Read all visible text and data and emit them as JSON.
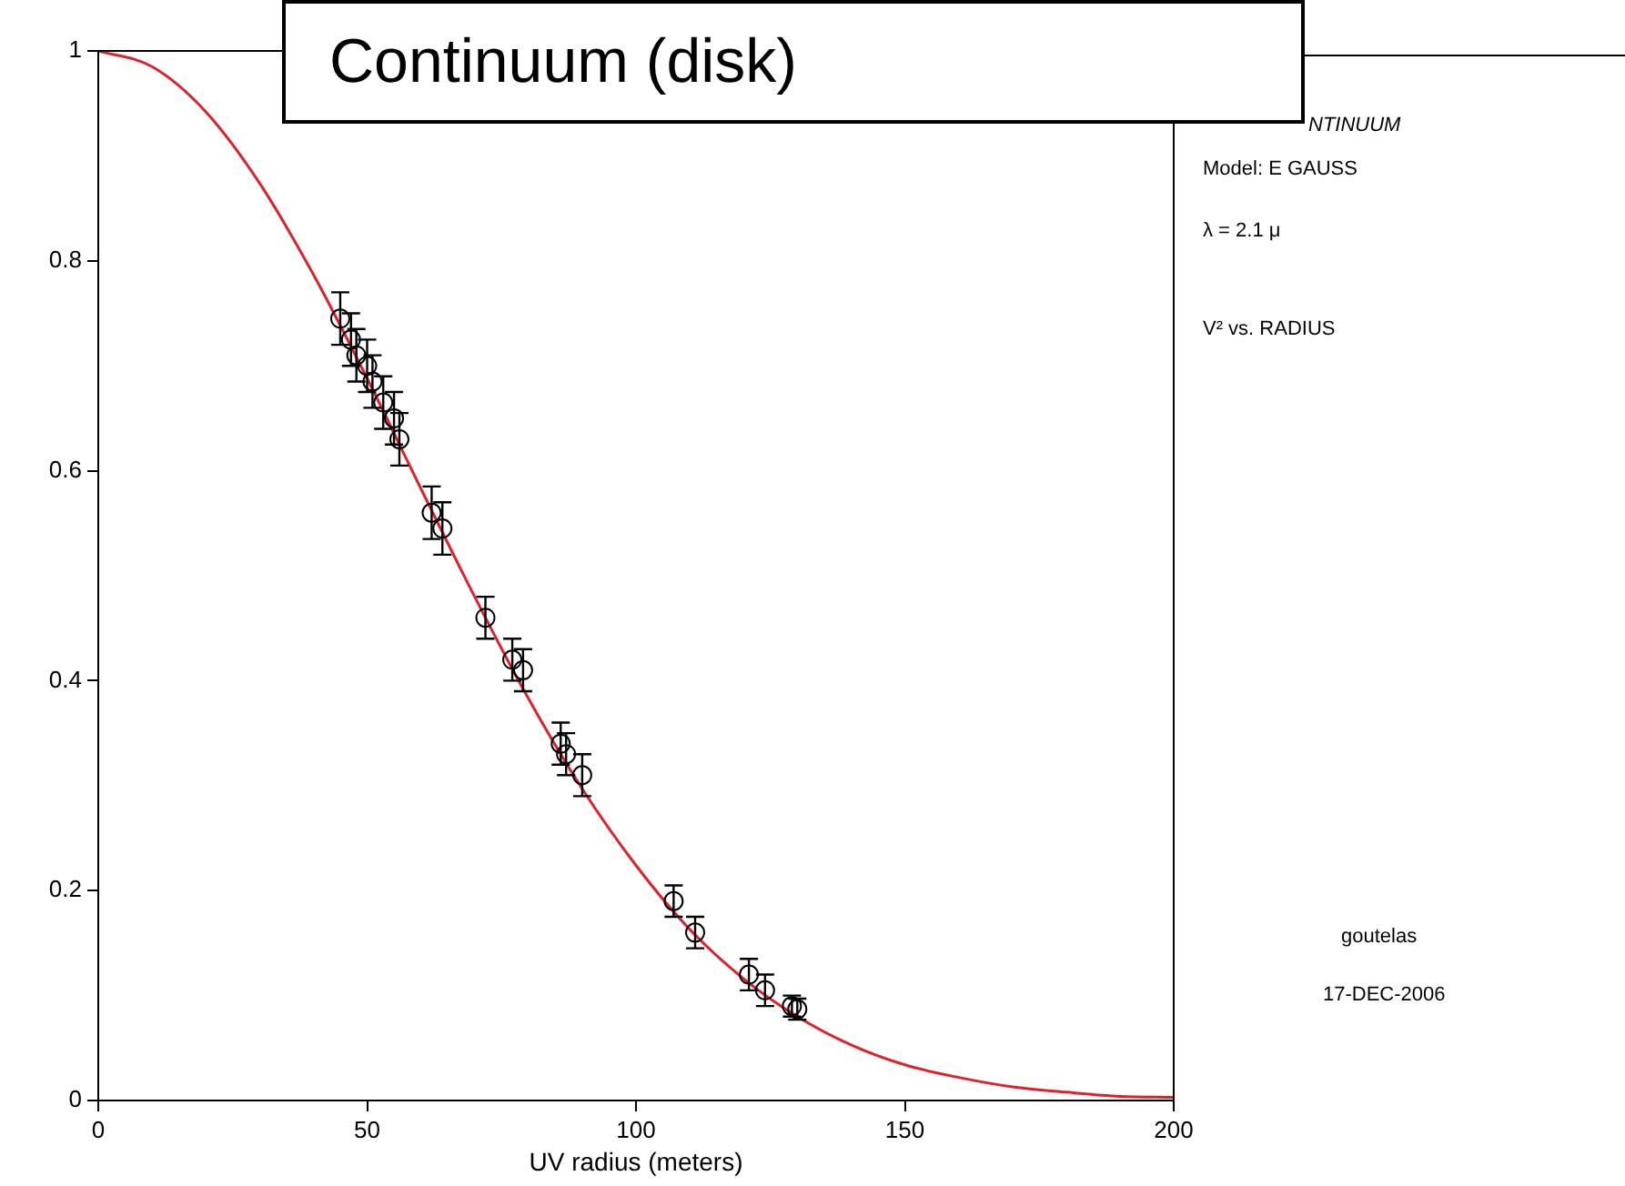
{
  "chart_data": {
    "type": "scatter",
    "title": "Continuum (disk)",
    "xlabel": "UV radius (meters)",
    "xlim": [
      0,
      200
    ],
    "xticks": [
      0,
      50,
      100,
      150,
      200
    ],
    "ylim": [
      0,
      1
    ],
    "yticks": [
      0,
      0.2,
      0.4,
      0.6,
      0.8,
      1
    ],
    "annotations": [
      "NTINUUM",
      "Model: E GAUSS",
      "λ = 2.1 μ",
      "V² vs. RADIUS",
      "goutelas",
      "17-DEC-2006"
    ],
    "series": [
      {
        "marker": "circle",
        "color": "#000000",
        "x": [
          45,
          47,
          48,
          50,
          51,
          53,
          55,
          56,
          62,
          64,
          72,
          77,
          79,
          86,
          87,
          90,
          107,
          111,
          121,
          124,
          129,
          130
        ],
        "values": [
          0.745,
          0.725,
          0.71,
          0.7,
          0.685,
          0.665,
          0.65,
          0.63,
          0.56,
          0.545,
          0.46,
          0.42,
          0.41,
          0.34,
          0.33,
          0.31,
          0.19,
          0.16,
          0.12,
          0.105,
          0.09,
          0.087
        ],
        "errors": [
          0.025,
          0.025,
          0.025,
          0.025,
          0.025,
          0.025,
          0.025,
          0.025,
          0.025,
          0.025,
          0.02,
          0.02,
          0.02,
          0.02,
          0.02,
          0.02,
          0.015,
          0.015,
          0.015,
          0.015,
          0.01,
          0.01
        ]
      },
      {
        "type": "line",
        "color": "#e0202a",
        "x": [
          0,
          10,
          20,
          30,
          40,
          50,
          60,
          70,
          80,
          90,
          100,
          110,
          120,
          130,
          140,
          150,
          160,
          170,
          180,
          190,
          200
        ],
        "values": [
          1,
          0.985,
          0.942,
          0.874,
          0.787,
          0.688,
          0.583,
          0.48,
          0.383,
          0.297,
          0.224,
          0.163,
          0.116,
          0.08,
          0.053,
          0.034,
          0.022,
          0.013,
          0.008,
          0.004,
          0.003
        ]
      }
    ]
  }
}
